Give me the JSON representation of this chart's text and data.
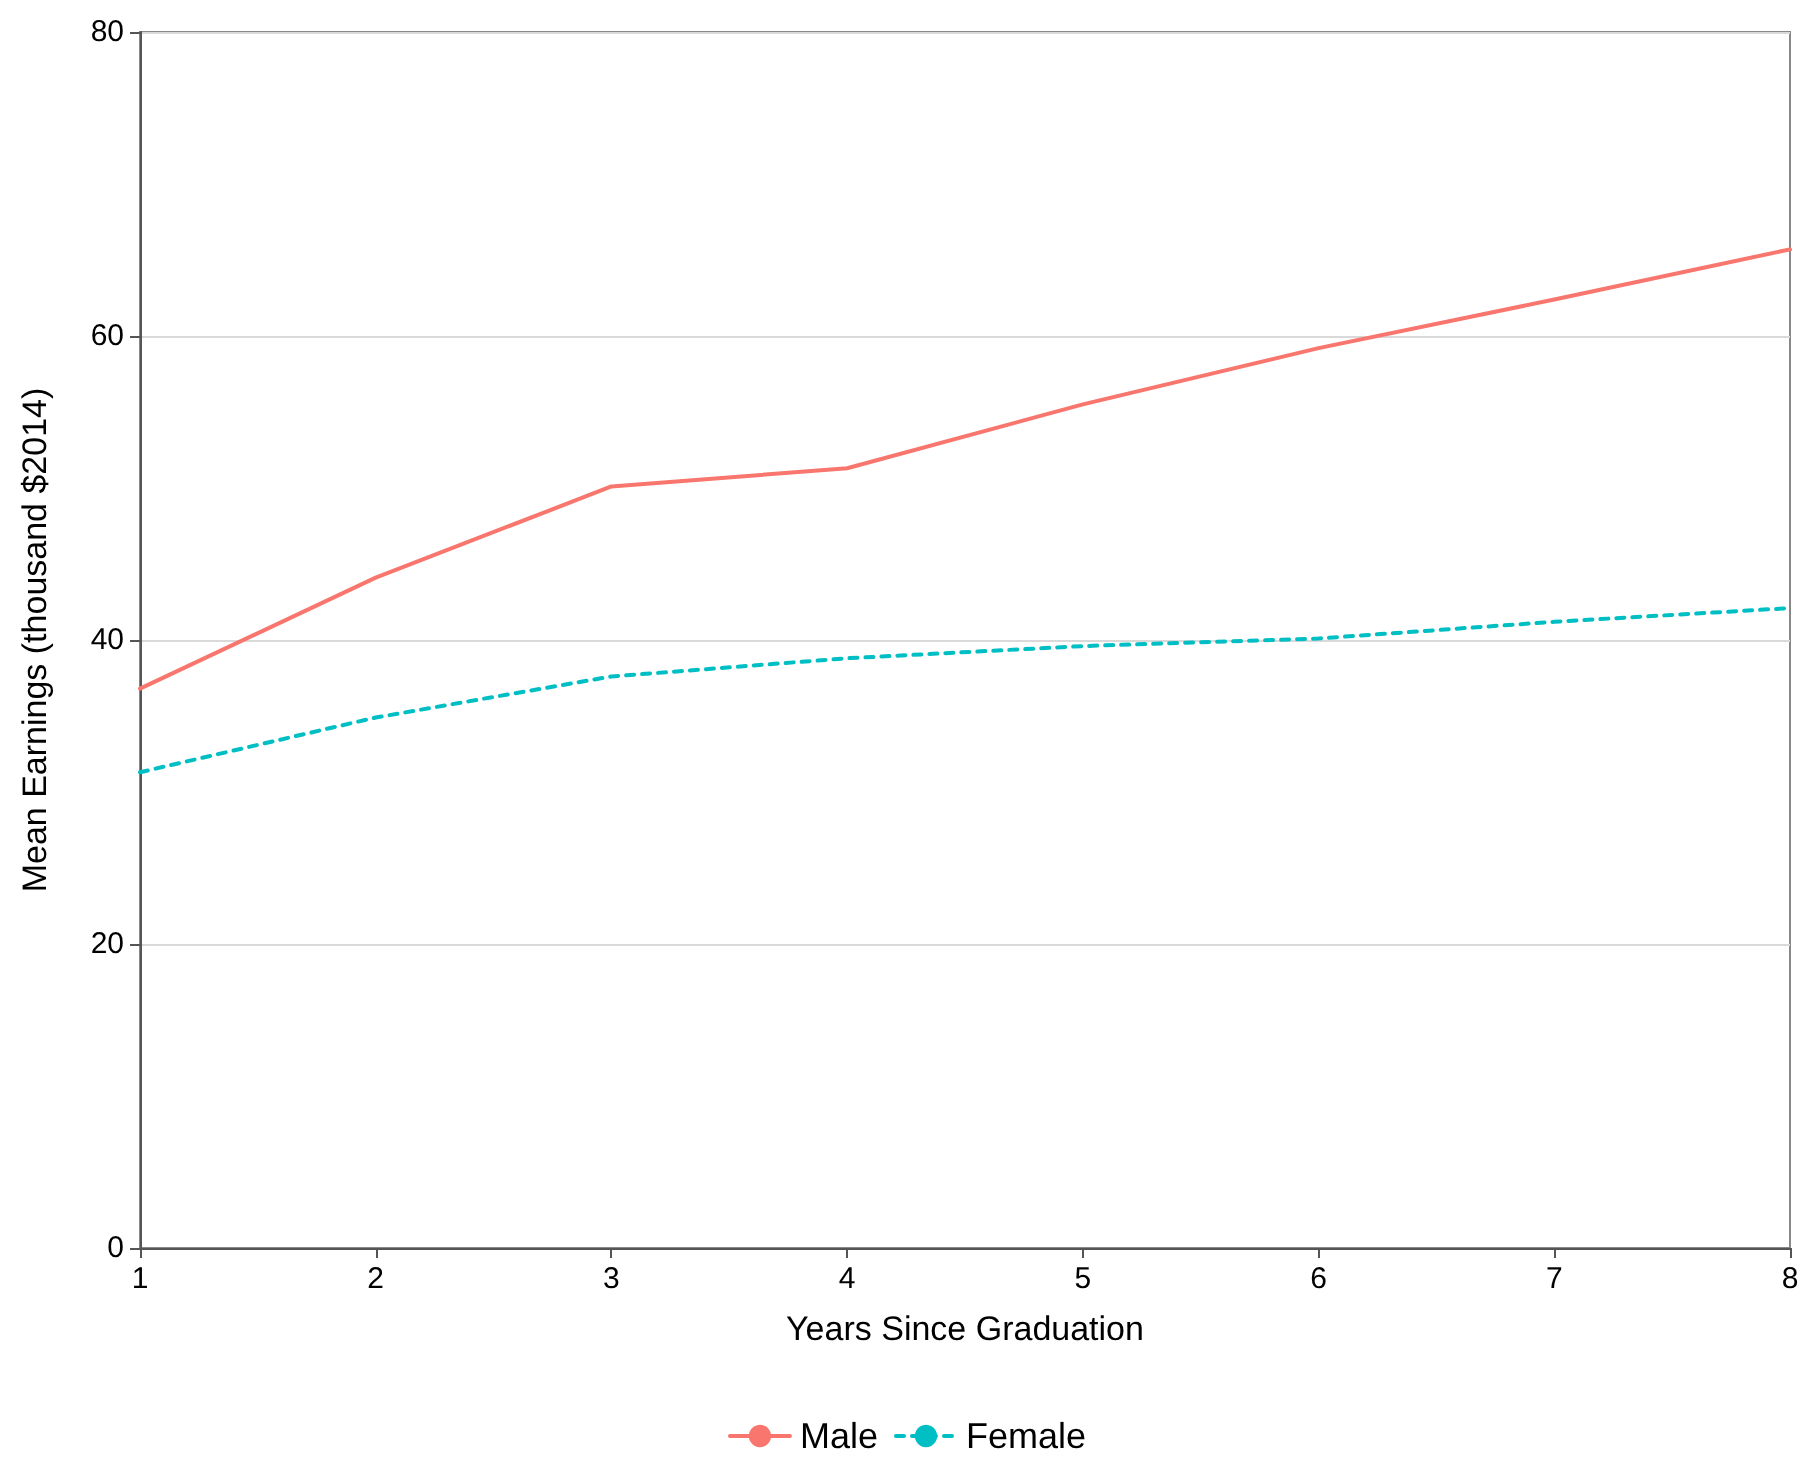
{
  "chart_data": {
    "type": "line",
    "xlabel": "Years Since Graduation",
    "ylabel": "Mean Earnings (thousand $2014)",
    "x": [
      1,
      2,
      3,
      4,
      5,
      6,
      7,
      8
    ],
    "series": [
      {
        "name": "Male",
        "color": "#f8766d",
        "line_style": "solid",
        "values": [
          36.8,
          44.1,
          50.1,
          51.3,
          55.5,
          59.2,
          62.4,
          65.7
        ]
      },
      {
        "name": "Female",
        "color": "#00bfc4",
        "line_style": "dashed",
        "values": [
          31.3,
          34.9,
          37.6,
          38.8,
          39.6,
          40.1,
          41.2,
          42.1
        ]
      }
    ],
    "xlim": [
      1,
      8
    ],
    "xticks": [
      1,
      2,
      3,
      4,
      5,
      6,
      7,
      8
    ],
    "ylim": [
      0,
      80
    ],
    "yticks": [
      0,
      20,
      40,
      60,
      80
    ],
    "grid": "y",
    "legend": "bottom",
    "marker": "none"
  }
}
